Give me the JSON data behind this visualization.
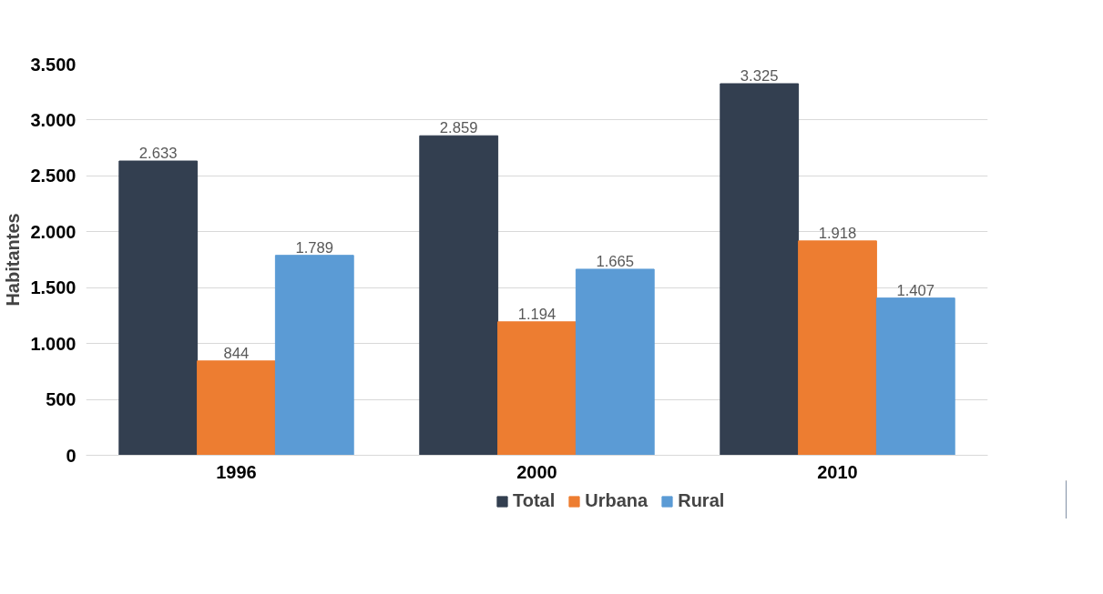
{
  "chart_data": {
    "type": "bar",
    "ylabel": "Habitantes",
    "categories": [
      "1996",
      "2000",
      "2010"
    ],
    "series": [
      {
        "name": "Total",
        "color": "#333f50",
        "values": [
          2633,
          2859,
          3325
        ],
        "value_labels": [
          "2.633",
          "2.859",
          "3.325"
        ]
      },
      {
        "name": "Urbana",
        "color": "#ed7d31",
        "values": [
          844,
          1194,
          1918
        ],
        "value_labels": [
          "844",
          "1.194",
          "1.918"
        ]
      },
      {
        "name": "Rural",
        "color": "#5b9bd5",
        "values": [
          1789,
          1665,
          1407
        ],
        "value_labels": [
          "1.789",
          "1.665",
          "1.407"
        ]
      }
    ],
    "ylim": [
      0,
      3500
    ],
    "yticks": [
      {
        "value": 0,
        "label": "0"
      },
      {
        "value": 500,
        "label": "500"
      },
      {
        "value": 1000,
        "label": "1.000"
      },
      {
        "value": 1500,
        "label": "1.500"
      },
      {
        "value": 2000,
        "label": "2.000"
      },
      {
        "value": 2500,
        "label": "2.500"
      },
      {
        "value": 3000,
        "label": "3.000"
      },
      {
        "value": 3500,
        "label": "3.500"
      }
    ],
    "grid": "y",
    "legend": "bottom"
  }
}
